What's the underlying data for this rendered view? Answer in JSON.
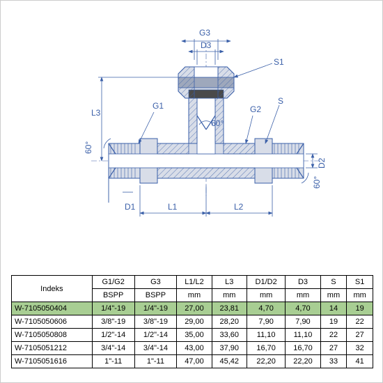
{
  "diagram": {
    "labels": {
      "G1": "G1",
      "G2": "G2",
      "G3": "G3",
      "L1": "L1",
      "L2": "L2",
      "L3": "L3",
      "D1": "D1",
      "D2": "D2",
      "D3": "D3",
      "S": "S",
      "S1": "S1",
      "angle": "60°"
    },
    "colors": {
      "line": "#3a5fa8",
      "fill_light": "#d8dde8",
      "fill_mid": "#9ea8bc",
      "background": "#ffffff"
    }
  },
  "table": {
    "headers": [
      "Indeks",
      "G1/G2",
      "G3",
      "L1/L2",
      "L3",
      "D1/D2",
      "D3",
      "S",
      "S1"
    ],
    "units": [
      "",
      "BSPP",
      "BSPP",
      "mm",
      "mm",
      "mm",
      "mm",
      "mm",
      "mm"
    ],
    "rows": [
      [
        "W-7105050404",
        "1/4\"-19",
        "1/4\"-19",
        "27,00",
        "23,81",
        "4,70",
        "4,70",
        "14",
        "19"
      ],
      [
        "W-7105050606",
        "3/8\"-19",
        "3/8\"-19",
        "29,00",
        "28,20",
        "7,90",
        "7,90",
        "19",
        "22"
      ],
      [
        "W-7105050808",
        "1/2\"-14",
        "1/2\"-14",
        "35,00",
        "33,60",
        "11,10",
        "11,10",
        "22",
        "27"
      ],
      [
        "W-7105051212",
        "3/4\"-14",
        "3/4\"-14",
        "43,00",
        "37,90",
        "16,70",
        "16,70",
        "27",
        "32"
      ],
      [
        "W-7105051616",
        "1\"-11",
        "1\"-11",
        "47,00",
        "45,42",
        "22,20",
        "22,20",
        "33",
        "41"
      ]
    ],
    "highlight_row": 0,
    "highlight_color": "#a8ce93",
    "font_size": 11,
    "border_color": "#000000"
  }
}
